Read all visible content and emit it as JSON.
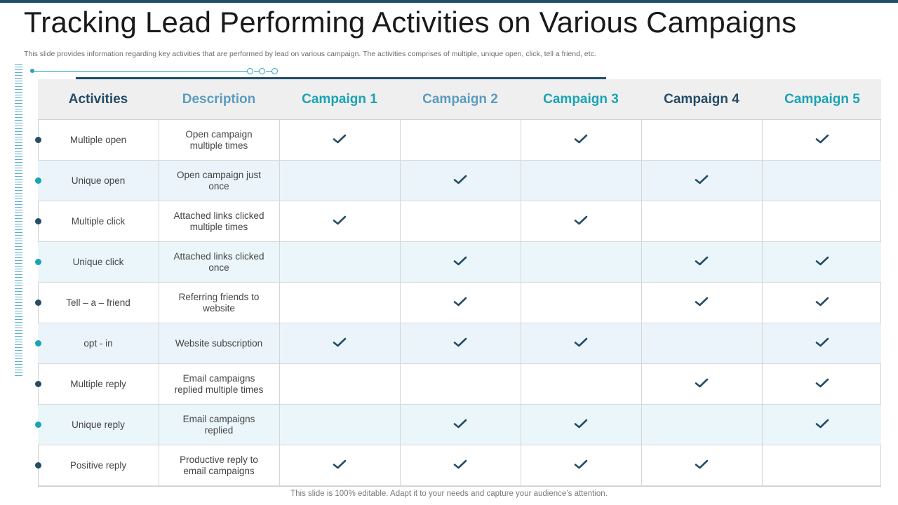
{
  "title": "Tracking Lead Performing Activities on Various Campaigns",
  "subtitle": "This slide provides information regarding key activities that are performed by lead on various campaign. The activities comprises of multiple, unique open, click, tell a friend, etc.",
  "footer": "This slide is 100% editable. Adapt it to your needs and capture your audience’s attention.",
  "colors": {
    "dark": "#264c66",
    "teal": "#1aa3b3",
    "light_blue": "#5b9cbf"
  },
  "table": {
    "headers": [
      {
        "label": "Activities",
        "color": "#264c66"
      },
      {
        "label": "Description",
        "color": "#5b9cbf"
      },
      {
        "label": "Campaign 1",
        "color": "#1aa3b3"
      },
      {
        "label": "Campaign 2",
        "color": "#5b9cbf"
      },
      {
        "label": "Campaign 3",
        "color": "#1aa3b3"
      },
      {
        "label": "Campaign 4",
        "color": "#264c66"
      },
      {
        "label": "Campaign 5",
        "color": "#1aa3b3"
      }
    ],
    "rows": [
      {
        "activity": "Multiple open",
        "description": "Open campaign multiple times",
        "checks": [
          true,
          false,
          true,
          false,
          true
        ],
        "bullet_color": "#264c66"
      },
      {
        "activity": "Unique open",
        "description": "Open campaign just once",
        "checks": [
          false,
          true,
          false,
          true,
          false
        ],
        "bullet_color": "#1aa3b3"
      },
      {
        "activity": "Multiple click",
        "description": "Attached links clicked multiple times",
        "checks": [
          true,
          false,
          true,
          false,
          false
        ],
        "bullet_color": "#264c66"
      },
      {
        "activity": "Unique click",
        "description": "Attached links clicked once",
        "checks": [
          false,
          true,
          false,
          true,
          true
        ],
        "bullet_color": "#1aa3b3"
      },
      {
        "activity": "Tell – a – friend",
        "description": "Referring friends to website",
        "checks": [
          false,
          true,
          false,
          true,
          true
        ],
        "bullet_color": "#264c66"
      },
      {
        "activity": "opt - in",
        "description": "Website subscription",
        "checks": [
          true,
          true,
          true,
          false,
          true
        ],
        "bullet_color": "#1aa3b3"
      },
      {
        "activity": "Multiple reply",
        "description": "Email campaigns replied multiple times",
        "checks": [
          false,
          false,
          false,
          true,
          true
        ],
        "bullet_color": "#264c66"
      },
      {
        "activity": "Unique reply",
        "description": "Email campaigns replied",
        "checks": [
          false,
          true,
          true,
          false,
          true
        ],
        "bullet_color": "#1aa3b3"
      },
      {
        "activity": "Positive reply",
        "description": "Productive reply to email campaigns",
        "checks": [
          true,
          true,
          true,
          true,
          false
        ],
        "bullet_color": "#264c66"
      }
    ]
  }
}
